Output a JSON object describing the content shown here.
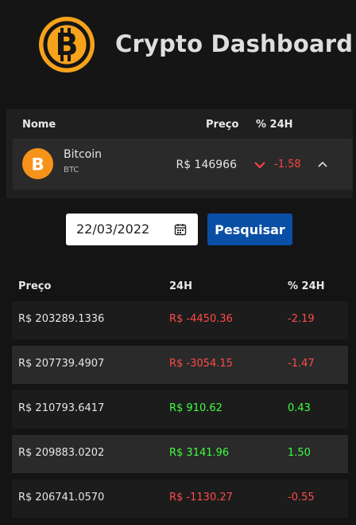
{
  "header": {
    "title": "Crypto Dashboard",
    "logo_icon": "bitcoin-logo-icon"
  },
  "coin_table": {
    "columns": {
      "name": "Nome",
      "price": "Preço",
      "change": "% 24H"
    },
    "row": {
      "name": "Bitcoin",
      "symbol": "BTC",
      "price": "R$ 146966",
      "change": "-1.58",
      "trend_icon": "chevron-down-icon",
      "expand_icon": "chevron-up-icon",
      "change_color": "#ff4444"
    }
  },
  "search": {
    "date_value": "22/03/2022",
    "calendar_icon": "calendar-icon",
    "button_label": "Pesquisar",
    "button_color": "#0a4fa6"
  },
  "history": {
    "columns": {
      "price": "Preço",
      "change": "24H",
      "pct": "% 24H"
    },
    "rows": [
      {
        "price": "R$ 203289.1336",
        "change": "R$ -4450.36",
        "pct": "-2.19",
        "trend": "neg"
      },
      {
        "price": "R$ 207739.4907",
        "change": "R$ -3054.15",
        "pct": "-1.47",
        "trend": "neg"
      },
      {
        "price": "R$ 210793.6417",
        "change": "R$ 910.62",
        "pct": "0.43",
        "trend": "pos"
      },
      {
        "price": "R$ 209883.0202",
        "change": "R$ 3141.96",
        "pct": "1.50",
        "trend": "pos"
      },
      {
        "price": "R$ 206741.0570",
        "change": "R$ -1130.27",
        "pct": "-0.55",
        "trend": "neg"
      }
    ]
  },
  "colors": {
    "negative": "#ff4a4a",
    "positive": "#3dff3d",
    "row_dark": "#1c1c1c",
    "row_light": "#2a2a2a"
  }
}
